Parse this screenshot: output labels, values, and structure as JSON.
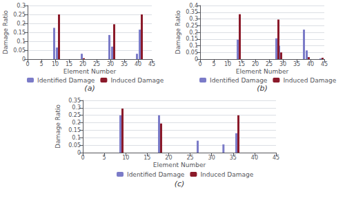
{
  "chart_data": [
    {
      "type": "bar",
      "title": "(a)",
      "xlabel": "Element Number",
      "ylabel": "Damage Ratio",
      "x": [
        10,
        11,
        20,
        30,
        31,
        40,
        41
      ],
      "series": [
        {
          "name": "Identified Damage",
          "color": "#7b7bc8",
          "values": [
            0.175,
            0.065,
            0.03,
            0.135,
            0.07,
            0.03,
            0.165
          ]
        },
        {
          "name": "Induced Damage",
          "color": "#8b1a2a",
          "values": [
            null,
            0.25,
            0.005,
            null,
            0.195,
            null,
            0.25
          ]
        }
      ],
      "xlim": [
        0,
        45
      ],
      "ylim": [
        0,
        0.3
      ],
      "xticks": [
        0,
        5,
        10,
        15,
        20,
        25,
        30,
        35,
        40,
        45
      ],
      "yticks": [
        0,
        0.05,
        0.1,
        0.15,
        0.2,
        0.25,
        0.3
      ],
      "grid": true,
      "legend": "bottom"
    },
    {
      "type": "bar",
      "title": "(b)",
      "xlabel": "Element Number",
      "ylabel": "Damage Ratio",
      "x": [
        14,
        28,
        29,
        38,
        39,
        44
      ],
      "series": [
        {
          "name": "Identified Damage",
          "color": "#7b7bc8",
          "values": [
            0.145,
            0.155,
            0.1,
            0.22,
            0.065,
            0.005
          ]
        },
        {
          "name": "Induced Damage",
          "color": "#8b1a2a",
          "values": [
            0.335,
            0.295,
            0.05,
            null,
            0.015,
            0.01
          ]
        }
      ],
      "xlim": [
        0,
        45
      ],
      "ylim": [
        0,
        0.4
      ],
      "xticks": [
        0,
        5,
        10,
        15,
        20,
        25,
        30,
        35,
        40,
        45
      ],
      "yticks": [
        0,
        0.05,
        0.1,
        0.15,
        0.2,
        0.25,
        0.3,
        0.35,
        0.4
      ],
      "grid": true,
      "legend": "bottom"
    },
    {
      "type": "bar",
      "title": "(c)",
      "xlabel": "Element Number",
      "ylabel": "Damage Ratio",
      "x": [
        9,
        18,
        27,
        33,
        36
      ],
      "series": [
        {
          "name": "Identified Damage",
          "color": "#7b7bc8",
          "values": [
            0.25,
            0.25,
            0.08,
            0.055,
            0.13
          ]
        },
        {
          "name": "Induced Damage",
          "color": "#8b1a2a",
          "values": [
            0.295,
            0.195,
            null,
            null,
            0.25
          ]
        }
      ],
      "xlim": [
        0,
        45
      ],
      "ylim": [
        0,
        0.35
      ],
      "xticks": [
        0,
        5,
        10,
        15,
        20,
        25,
        30,
        35,
        40,
        45
      ],
      "yticks": [
        0,
        0.05,
        0.1,
        0.15,
        0.2,
        0.25,
        0.3,
        0.35
      ],
      "grid": true,
      "legend": "bottom"
    }
  ]
}
